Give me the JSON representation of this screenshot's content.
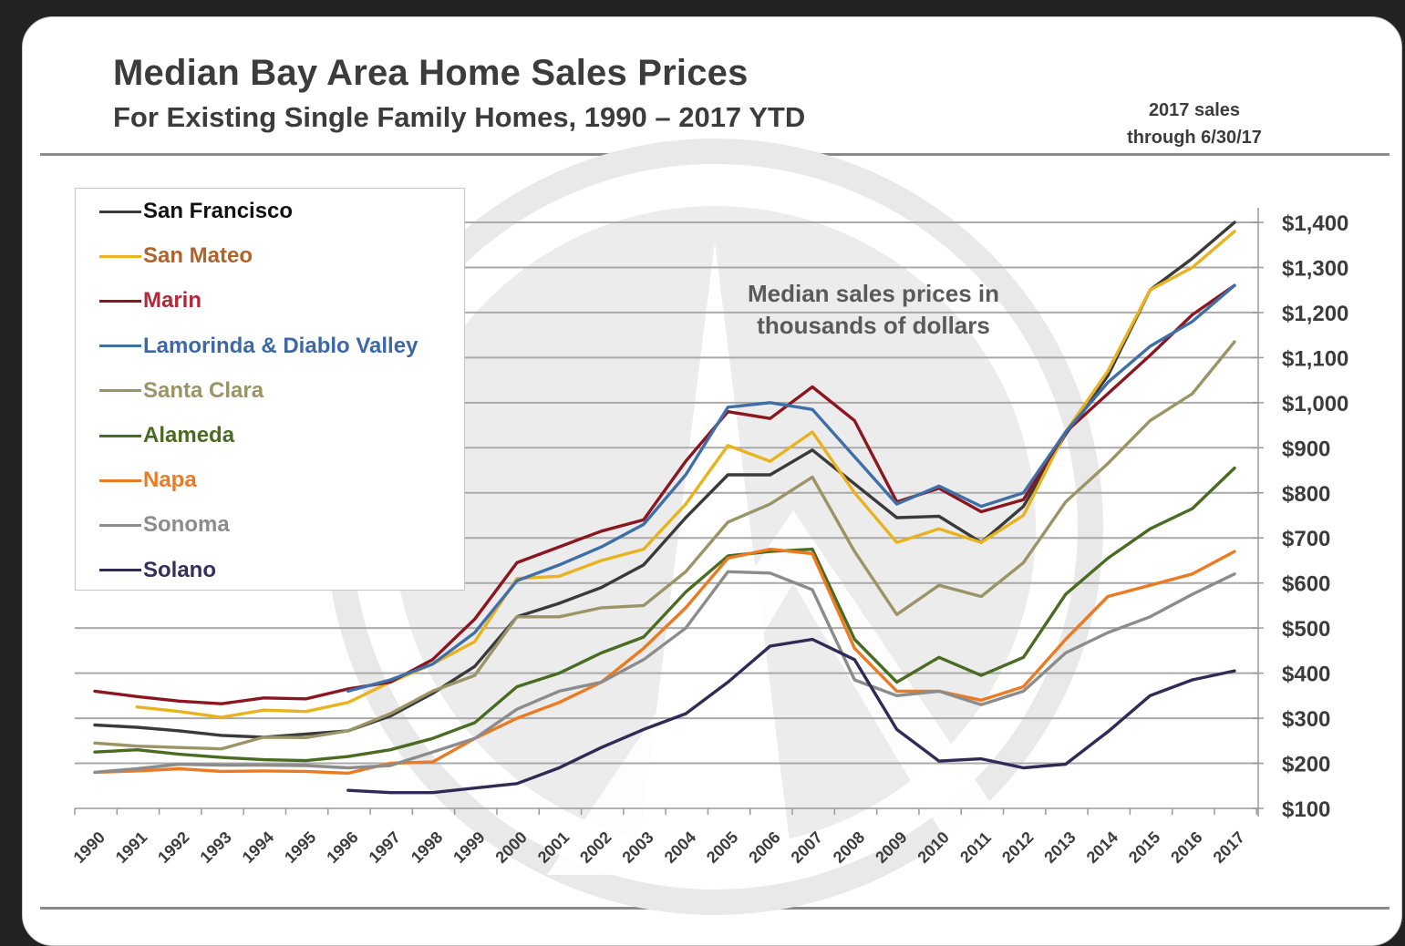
{
  "header": {
    "title": "Median Bay Area Home Sales Prices",
    "subtitle": "For Existing Single Family Homes, 1990 – 2017 YTD",
    "note_line1": "2017 sales",
    "note_line2": "through 6/30/17"
  },
  "annotation": {
    "line1": "Median sales prices in",
    "line2": "thousands of dollars"
  },
  "chart_data": {
    "type": "line",
    "title": "Median Bay Area Home Sales Prices",
    "subtitle": "For Existing Single Family Homes, 1990 – 2017 YTD",
    "xlabel": "",
    "ylabel": "Median sales prices in thousands of dollars",
    "x": [
      1990,
      1991,
      1992,
      1993,
      1994,
      1995,
      1996,
      1997,
      1998,
      1999,
      2000,
      2001,
      2002,
      2003,
      2004,
      2005,
      2006,
      2007,
      2008,
      2009,
      2010,
      2011,
      2012,
      2013,
      2014,
      2015,
      2016,
      2017
    ],
    "x_tick_labels": [
      "1990",
      "1991",
      "1992",
      "1993",
      "1994",
      "1995",
      "1996",
      "1997",
      "1998",
      "1999",
      "2000",
      "2001",
      "2002",
      "2003",
      "2004",
      "2005",
      "2006",
      "2007",
      "2008",
      "2009",
      "2010",
      "2011",
      "2012",
      "2013",
      "2014",
      "2015",
      "2016",
      "2017"
    ],
    "ylim": [
      100,
      1400
    ],
    "y_ticks": [
      100,
      200,
      300,
      400,
      500,
      600,
      700,
      800,
      900,
      1000,
      1100,
      1200,
      1300,
      1400
    ],
    "y_tick_labels": [
      "$100",
      "$200",
      "$300",
      "$400",
      "$500",
      "$600",
      "$700",
      "$800",
      "$900",
      "$1,000",
      "$1,100",
      "$1,200",
      "$1,300",
      "$1,400"
    ],
    "y_axis_side": "right",
    "grid": true,
    "legend_position": "top-left",
    "series": [
      {
        "name": "San Francisco",
        "color": "#3a3a3a",
        "label_color": "#111111",
        "values": [
          285,
          280,
          272,
          262,
          258,
          265,
          272,
          305,
          355,
          415,
          525,
          555,
          590,
          640,
          745,
          840,
          840,
          895,
          820,
          745,
          748,
          690,
          770,
          930,
          1060,
          1250,
          1320,
          1400
        ]
      },
      {
        "name": "San Mateo",
        "color": "#e8b31e",
        "label_color": "#b0642a",
        "values": [
          null,
          325,
          315,
          302,
          318,
          315,
          335,
          380,
          420,
          470,
          610,
          615,
          650,
          675,
          775,
          905,
          870,
          935,
          800,
          690,
          720,
          690,
          750,
          935,
          1070,
          1250,
          1300,
          1380
        ]
      },
      {
        "name": "Marin",
        "color": "#8b1620",
        "label_color": "#b02a3a",
        "values": [
          360,
          348,
          338,
          332,
          345,
          343,
          365,
          380,
          430,
          520,
          645,
          680,
          715,
          740,
          870,
          980,
          965,
          1035,
          960,
          780,
          810,
          758,
          785,
          935,
          1020,
          1105,
          1195,
          1260
        ]
      },
      {
        "name": "Lamorinda & Diablo Valley",
        "color": "#3f6fa8",
        "label_color": "#3c68a8",
        "values": [
          null,
          null,
          null,
          null,
          null,
          null,
          360,
          385,
          420,
          490,
          605,
          640,
          680,
          730,
          840,
          990,
          1000,
          985,
          880,
          775,
          815,
          770,
          800,
          935,
          1045,
          1125,
          1180,
          1260
        ]
      },
      {
        "name": "Santa Clara",
        "color": "#9a9466",
        "label_color": "#9a9466",
        "values": [
          245,
          238,
          235,
          232,
          258,
          257,
          272,
          310,
          360,
          395,
          525,
          525,
          545,
          550,
          625,
          735,
          775,
          835,
          670,
          530,
          595,
          570,
          645,
          780,
          865,
          960,
          1020,
          1135
        ]
      },
      {
        "name": "Alameda",
        "color": "#4a6b22",
        "label_color": "#4a6b22",
        "values": [
          225,
          230,
          220,
          213,
          208,
          206,
          215,
          230,
          255,
          290,
          370,
          400,
          445,
          480,
          580,
          660,
          670,
          675,
          475,
          380,
          435,
          395,
          435,
          575,
          655,
          720,
          765,
          855
        ]
      },
      {
        "name": "Napa",
        "color": "#ec7a22",
        "label_color": "#ec7a22",
        "values": [
          180,
          183,
          188,
          182,
          183,
          182,
          178,
          200,
          203,
          255,
          300,
          335,
          380,
          455,
          545,
          655,
          675,
          665,
          455,
          360,
          360,
          340,
          370,
          475,
          570,
          595,
          620,
          670
        ]
      },
      {
        "name": "Sonoma",
        "color": "#8c8c8c",
        "label_color": "#8c8c8c",
        "values": [
          180,
          188,
          198,
          196,
          196,
          195,
          190,
          195,
          225,
          255,
          320,
          360,
          380,
          430,
          500,
          625,
          622,
          585,
          385,
          350,
          360,
          330,
          360,
          445,
          490,
          525,
          575,
          620
        ]
      },
      {
        "name": "Solano",
        "color": "#302a55",
        "label_color": "#352e5e",
        "values": [
          null,
          null,
          null,
          null,
          null,
          null,
          140,
          135,
          135,
          145,
          155,
          190,
          235,
          275,
          310,
          380,
          460,
          475,
          430,
          275,
          205,
          210,
          190,
          198,
          270,
          350,
          385,
          405
        ]
      }
    ]
  }
}
